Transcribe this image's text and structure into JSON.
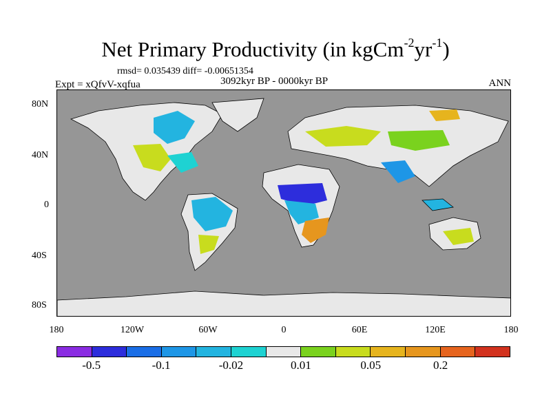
{
  "title": {
    "main": "Net Primary Productivity (in kgCm",
    "exp1": "-2",
    "mid": "yr",
    "exp2": "-1",
    "end": ")"
  },
  "stats": "rmsd= 0.035439 diff= -0.00651354",
  "period": "3092kyr BP - 0000kyr BP",
  "experiment": "Expt = xQfvV-xqfua",
  "season": "ANN",
  "lat_labels": [
    "80N",
    "40N",
    "0",
    "40S",
    "80S"
  ],
  "lon_labels": [
    "180",
    "120W",
    "60W",
    "0",
    "60E",
    "120E",
    "180"
  ],
  "colorbar": {
    "colors": [
      "#8a2ce2",
      "#2d2ddc",
      "#1a6ee6",
      "#1e96e6",
      "#23b4e0",
      "#1ed2d2",
      "#e8e8e8",
      "#7ad21e",
      "#c8dc1e",
      "#e6b41e",
      "#e6961e",
      "#e6641e",
      "#d2321e"
    ],
    "labels": [
      "-0.5",
      "-0.1",
      "-0.02",
      "0.01",
      "0.05",
      "0.2"
    ]
  },
  "colors": {
    "ocean": "#969696",
    "land_neutral": "#e8e8e8"
  }
}
